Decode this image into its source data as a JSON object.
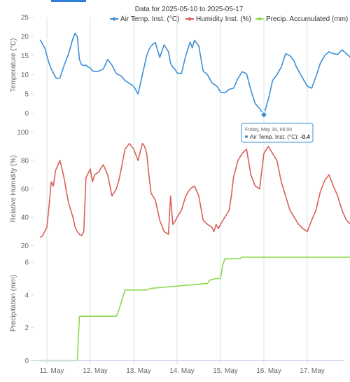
{
  "title": "Data for 2025-05-10 to 2025-05-17",
  "legend": [
    {
      "label": "Air Temp. Inst. (°C)",
      "color": "#3d8fd6"
    },
    {
      "label": "Humidity Inst. (%)",
      "color": "#d9605a"
    },
    {
      "label": "Precip. Accumulated (mm)",
      "color": "#8fd84e"
    }
  ],
  "tooltip": {
    "header": "Friday, May 16, 06:00",
    "series_label": "Air Temp. Inst. (°C):",
    "value": "-0.4"
  },
  "x_labels": [
    "11. May",
    "12. May",
    "13. May",
    "14. May",
    "15. May",
    "16. May",
    "17. May"
  ],
  "chart_data": [
    {
      "type": "line",
      "ylabel": "Temperature (°C)",
      "ylim": [
        0,
        25
      ],
      "yticks": [
        0,
        5,
        10,
        15,
        20,
        25
      ],
      "series": [
        {
          "name": "Air Temp. Inst. (°C)",
          "x": [
            -0.15,
            -0.1,
            -0.05,
            0.0,
            0.05,
            0.1,
            0.15,
            0.2,
            0.25,
            0.3,
            0.4,
            0.5,
            0.55,
            0.6,
            0.65,
            0.7,
            0.75,
            0.8,
            0.85,
            0.9,
            0.95,
            1.0,
            1.05,
            1.1,
            1.15,
            1.2,
            1.3,
            1.4,
            1.5,
            1.6,
            1.7,
            1.8,
            1.9,
            2.0,
            2.1,
            2.2,
            2.3,
            2.35,
            2.4,
            2.45,
            2.5,
            2.6,
            2.7,
            2.8,
            2.85,
            2.9,
            2.95,
            3.0,
            3.1,
            3.2,
            3.3,
            3.35,
            3.4,
            3.5,
            3.6,
            3.7,
            3.8,
            3.85,
            3.9,
            3.95,
            4.0,
            4.1,
            4.2,
            4.3,
            4.4,
            4.5,
            4.6,
            4.7,
            4.8,
            4.9,
            5.0,
            5.1,
            5.2,
            5.3,
            5.4,
            5.5,
            5.6,
            5.7,
            5.75,
            5.8,
            5.9,
            6.0,
            6.1,
            6.2,
            6.3,
            6.4,
            6.5,
            6.6,
            6.7,
            6.8,
            6.9,
            7.0,
            7.05,
            7.1,
            7.15
          ],
          "values": [
            19.0,
            18.0,
            17.0,
            15.0,
            13.0,
            11.5,
            10.5,
            9.3,
            9.0,
            9.2,
            12.5,
            15.5,
            17.5,
            19.5,
            20.8,
            20.0,
            14.0,
            12.6,
            12.4,
            12.5,
            12.0,
            11.8,
            11.0,
            10.9,
            10.8,
            11.0,
            11.5,
            14.0,
            12.5,
            10.3,
            9.8,
            8.5,
            7.8,
            7.0,
            5.0,
            10.0,
            15.0,
            16.5,
            17.5,
            18.0,
            18.4,
            14.5,
            17.8,
            16.0,
            13.0,
            12.0,
            11.5,
            10.5,
            10.3,
            15.0,
            18.5,
            17.0,
            19.0,
            17.5,
            11.0,
            10.0,
            8.0,
            7.5,
            7.2,
            6.5,
            5.5,
            5.3,
            6.2,
            6.5,
            9.0,
            10.8,
            10.3,
            6.0,
            2.5,
            1.2,
            -0.4,
            3.5,
            8.5,
            10.0,
            12.0,
            15.5,
            15.0,
            13.5,
            12.0,
            11.0,
            9.0,
            7.0,
            6.5,
            9.5,
            13.0,
            15.0,
            16.0,
            15.5,
            15.3,
            16.5,
            15.5,
            14.5,
            15.5,
            16.5,
            15.2
          ]
        }
      ]
    },
    {
      "type": "line",
      "ylabel": "Relative Humidity (%)",
      "ylim": [
        20,
        100
      ],
      "yticks": [
        20,
        40,
        60,
        80,
        100
      ],
      "series": [
        {
          "name": "Humidity Inst. (%)",
          "x": [
            -0.15,
            -0.1,
            0.0,
            0.05,
            0.1,
            0.15,
            0.2,
            0.3,
            0.35,
            0.4,
            0.45,
            0.5,
            0.6,
            0.65,
            0.7,
            0.75,
            0.8,
            0.85,
            0.9,
            1.0,
            1.05,
            1.1,
            1.2,
            1.25,
            1.3,
            1.4,
            1.5,
            1.6,
            1.65,
            1.7,
            1.8,
            1.9,
            2.0,
            2.1,
            2.2,
            2.25,
            2.3,
            2.35,
            2.4,
            2.5,
            2.6,
            2.7,
            2.8,
            2.85,
            2.9,
            2.95,
            3.0,
            3.1,
            3.2,
            3.3,
            3.4,
            3.5,
            3.6,
            3.7,
            3.8,
            3.85,
            3.9,
            3.95,
            4.0,
            4.1,
            4.2,
            4.25,
            4.3,
            4.4,
            4.5,
            4.6,
            4.7,
            4.8,
            4.9,
            5.0,
            5.1,
            5.2,
            5.3,
            5.4,
            5.5,
            5.6,
            5.7,
            5.8,
            5.9,
            6.0,
            6.1,
            6.2,
            6.3,
            6.4,
            6.5,
            6.6,
            6.7,
            6.8,
            6.9,
            7.0,
            7.1,
            7.15
          ],
          "values": [
            26,
            27,
            33,
            48,
            65,
            62,
            73,
            80,
            74,
            67,
            58,
            50,
            40,
            33,
            30,
            28,
            27,
            30,
            68,
            74,
            65,
            70,
            72,
            75,
            77,
            70,
            55,
            60,
            65,
            72,
            88,
            92,
            88,
            80,
            92,
            90,
            85,
            70,
            57,
            52,
            38,
            30,
            28,
            55,
            35,
            37,
            40,
            45,
            55,
            60,
            62,
            55,
            38,
            35,
            33,
            30,
            35,
            32,
            35,
            40,
            45,
            55,
            68,
            80,
            85,
            88,
            70,
            62,
            60,
            85,
            90,
            85,
            80,
            65,
            55,
            45,
            40,
            35,
            32,
            30,
            38,
            45,
            58,
            66,
            70,
            62,
            55,
            45,
            38,
            35,
            40,
            44
          ]
        }
      ]
    },
    {
      "type": "line",
      "ylabel": "Precipitation (mm)",
      "ylim": [
        0,
        7
      ],
      "yticks": [
        0,
        2,
        4,
        6
      ],
      "series": [
        {
          "name": "Precip. Accumulated (mm)",
          "x": [
            -0.15,
            0.7,
            0.75,
            1.6,
            1.65,
            1.8,
            2.3,
            2.4,
            3.7,
            3.75,
            3.9,
            4.0,
            4.05,
            4.1,
            4.45,
            4.5,
            7.15
          ],
          "values": [
            0,
            0,
            2.7,
            2.7,
            3.0,
            4.3,
            4.3,
            4.4,
            4.7,
            4.9,
            5.0,
            5.0,
            5.8,
            6.2,
            6.2,
            6.3,
            6.3
          ]
        }
      ]
    }
  ]
}
